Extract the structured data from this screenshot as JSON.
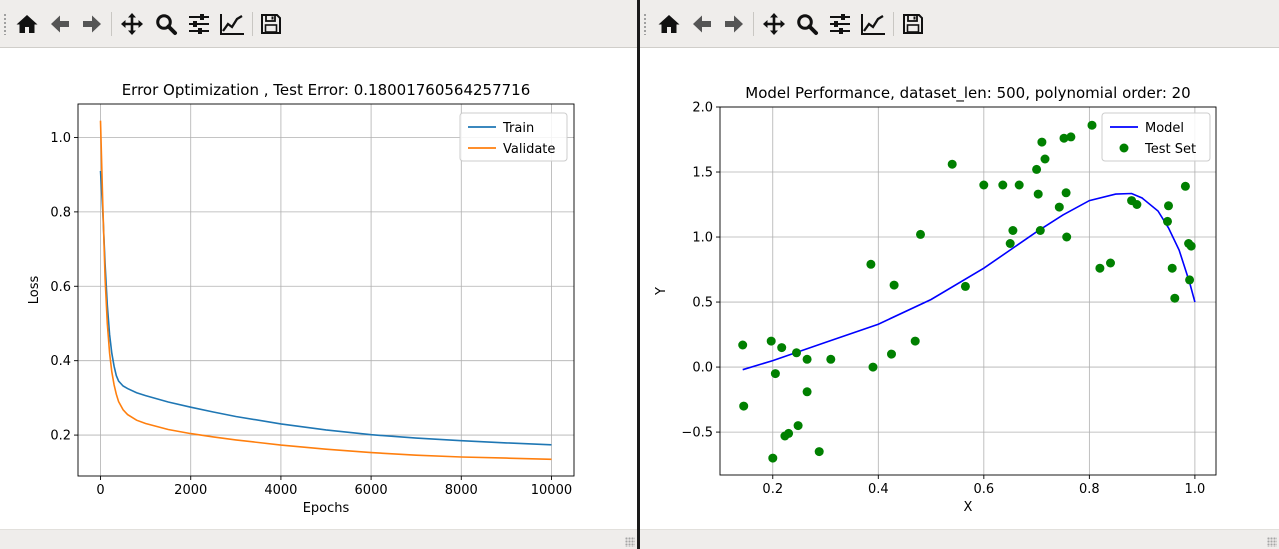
{
  "toolbar": {
    "icons": [
      "home-icon",
      "back-arrow-icon",
      "forward-arrow-icon",
      "pan-icon",
      "zoom-icon",
      "configure-subplots-icon",
      "edit-axis-icon",
      "save-icon"
    ]
  },
  "chart_data": [
    {
      "type": "line",
      "title": "Error Optimization , Test Error: 0.18001760564257716",
      "xlabel": "Epochs",
      "ylabel": "Loss",
      "xlim": [
        -500,
        10500
      ],
      "ylim": [
        0.09,
        1.09
      ],
      "xticks": [
        0,
        2000,
        4000,
        6000,
        8000,
        10000
      ],
      "yticks": [
        0.2,
        0.4,
        0.6,
        0.8,
        1.0
      ],
      "xtick_labels": [
        "0",
        "2000",
        "4000",
        "6000",
        "8000",
        "10000"
      ],
      "ytick_labels": [
        "0.2",
        "0.4",
        "0.6",
        "0.8",
        "1.0"
      ],
      "grid": true,
      "legend": "top-right",
      "series": [
        {
          "name": "Train",
          "color": "#1f77b4",
          "x": [
            0,
            50,
            100,
            150,
            200,
            250,
            300,
            350,
            400,
            500,
            600,
            800,
            1000,
            1500,
            2000,
            2500,
            3000,
            4000,
            5000,
            6000,
            7000,
            8000,
            9000,
            10000
          ],
          "y": [
            0.91,
            0.8,
            0.66,
            0.55,
            0.47,
            0.42,
            0.385,
            0.36,
            0.345,
            0.332,
            0.325,
            0.314,
            0.306,
            0.289,
            0.275,
            0.262,
            0.25,
            0.23,
            0.214,
            0.201,
            0.192,
            0.185,
            0.179,
            0.174
          ]
        },
        {
          "name": "Validate",
          "color": "#ff7f0e",
          "x": [
            0,
            50,
            100,
            150,
            200,
            250,
            300,
            350,
            400,
            500,
            600,
            800,
            1000,
            1500,
            2000,
            2500,
            3000,
            4000,
            5000,
            6000,
            7000,
            8000,
            9000,
            10000
          ],
          "y": [
            1.045,
            0.82,
            0.62,
            0.5,
            0.42,
            0.37,
            0.335,
            0.31,
            0.29,
            0.268,
            0.255,
            0.24,
            0.231,
            0.215,
            0.204,
            0.195,
            0.187,
            0.173,
            0.162,
            0.153,
            0.146,
            0.141,
            0.138,
            0.135
          ]
        }
      ]
    },
    {
      "type": "scatter",
      "title": "Model Performance, dataset_len: 500, polynomial order: 20",
      "xlabel": "X",
      "ylabel": "Y",
      "xlim": [
        0.1,
        1.04
      ],
      "ylim": [
        -0.83,
        2.0
      ],
      "xticks": [
        0.2,
        0.4,
        0.6,
        0.8,
        1.0
      ],
      "yticks": [
        -0.5,
        0.0,
        0.5,
        1.0,
        1.5,
        2.0
      ],
      "xtick_labels": [
        "0.2",
        "0.4",
        "0.6",
        "0.8",
        "1.0"
      ],
      "ytick_labels": [
        "−0.5",
        "0.0",
        "0.5",
        "1.0",
        "1.5",
        "2.0"
      ],
      "grid": true,
      "legend": "top-right",
      "model": {
        "name": "Model",
        "color": "#0000ff",
        "x": [
          0.143,
          0.2,
          0.3,
          0.4,
          0.5,
          0.6,
          0.7,
          0.75,
          0.8,
          0.85,
          0.88,
          0.9,
          0.93,
          0.95,
          0.97,
          0.99,
          1.0
        ],
        "y": [
          -0.02,
          0.05,
          0.19,
          0.33,
          0.52,
          0.76,
          1.04,
          1.17,
          1.28,
          1.33,
          1.335,
          1.3,
          1.2,
          1.07,
          0.9,
          0.65,
          0.5
        ]
      },
      "test_set": {
        "name": "Test Set",
        "color": "#008000",
        "points": [
          [
            0.143,
            0.17
          ],
          [
            0.145,
            -0.3
          ],
          [
            0.197,
            0.2
          ],
          [
            0.2,
            -0.7
          ],
          [
            0.205,
            -0.05
          ],
          [
            0.217,
            0.15
          ],
          [
            0.223,
            -0.53
          ],
          [
            0.23,
            -0.51
          ],
          [
            0.245,
            0.11
          ],
          [
            0.248,
            -0.45
          ],
          [
            0.265,
            0.06
          ],
          [
            0.265,
            -0.19
          ],
          [
            0.288,
            -0.65
          ],
          [
            0.31,
            0.06
          ],
          [
            0.386,
            0.79
          ],
          [
            0.39,
            0.0
          ],
          [
            0.425,
            0.1
          ],
          [
            0.43,
            0.63
          ],
          [
            0.47,
            0.2
          ],
          [
            0.48,
            1.02
          ],
          [
            0.54,
            1.56
          ],
          [
            0.565,
            0.62
          ],
          [
            0.6,
            1.4
          ],
          [
            0.636,
            1.4
          ],
          [
            0.65,
            0.95
          ],
          [
            0.655,
            1.05
          ],
          [
            0.667,
            1.4
          ],
          [
            0.7,
            1.52
          ],
          [
            0.703,
            1.33
          ],
          [
            0.707,
            1.05
          ],
          [
            0.71,
            1.73
          ],
          [
            0.716,
            1.6
          ],
          [
            0.743,
            1.23
          ],
          [
            0.752,
            1.76
          ],
          [
            0.756,
            1.34
          ],
          [
            0.757,
            1.0
          ],
          [
            0.765,
            1.77
          ],
          [
            0.805,
            1.86
          ],
          [
            0.82,
            0.76
          ],
          [
            0.84,
            0.8
          ],
          [
            0.88,
            1.28
          ],
          [
            0.89,
            1.25
          ],
          [
            0.948,
            1.12
          ],
          [
            0.95,
            1.24
          ],
          [
            0.957,
            0.76
          ],
          [
            0.962,
            0.53
          ],
          [
            0.982,
            1.39
          ],
          [
            0.988,
            0.95
          ],
          [
            0.99,
            0.67
          ],
          [
            0.993,
            0.93
          ]
        ]
      }
    }
  ]
}
